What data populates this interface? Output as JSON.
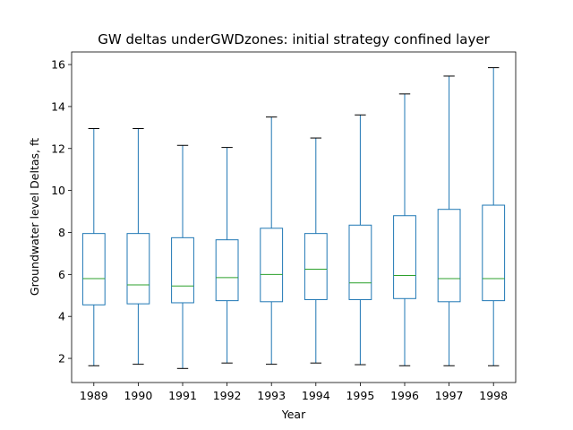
{
  "chart_data": {
    "type": "box",
    "title": "GW deltas underGWDzones: initial strategy confined layer",
    "xlabel": "Year",
    "ylabel": "Groundwater level Deltas, ft",
    "categories": [
      "1989",
      "1990",
      "1991",
      "1992",
      "1993",
      "1994",
      "1995",
      "1996",
      "1997",
      "1998"
    ],
    "ylim": [
      0.85,
      16.6
    ],
    "yticks": [
      2,
      4,
      6,
      8,
      10,
      12,
      14,
      16
    ],
    "grid": false,
    "box_color": "#1f77b4",
    "median_color": "#2ca02c",
    "whisker_cap_color": "#000000",
    "boxes": [
      {
        "label": "1989",
        "whislo": 1.65,
        "q1": 4.55,
        "med": 5.8,
        "q3": 7.95,
        "whishi": 12.95
      },
      {
        "label": "1990",
        "whislo": 1.72,
        "q1": 4.6,
        "med": 5.5,
        "q3": 7.95,
        "whishi": 12.95
      },
      {
        "label": "1991",
        "whislo": 1.52,
        "q1": 4.65,
        "med": 5.45,
        "q3": 7.75,
        "whishi": 12.15
      },
      {
        "label": "1992",
        "whislo": 1.78,
        "q1": 4.75,
        "med": 5.85,
        "q3": 7.65,
        "whishi": 12.05
      },
      {
        "label": "1993",
        "whislo": 1.72,
        "q1": 4.7,
        "med": 6.0,
        "q3": 8.2,
        "whishi": 13.5
      },
      {
        "label": "1994",
        "whislo": 1.78,
        "q1": 4.8,
        "med": 6.25,
        "q3": 7.95,
        "whishi": 12.5
      },
      {
        "label": "1995",
        "whislo": 1.7,
        "q1": 4.8,
        "med": 5.6,
        "q3": 8.35,
        "whishi": 13.6
      },
      {
        "label": "1996",
        "whislo": 1.65,
        "q1": 4.85,
        "med": 5.95,
        "q3": 8.8,
        "whishi": 14.6
      },
      {
        "label": "1997",
        "whislo": 1.65,
        "q1": 4.7,
        "med": 5.8,
        "q3": 9.1,
        "whishi": 15.45
      },
      {
        "label": "1998",
        "whislo": 1.65,
        "q1": 4.75,
        "med": 5.8,
        "q3": 9.3,
        "whishi": 15.85
      }
    ]
  }
}
